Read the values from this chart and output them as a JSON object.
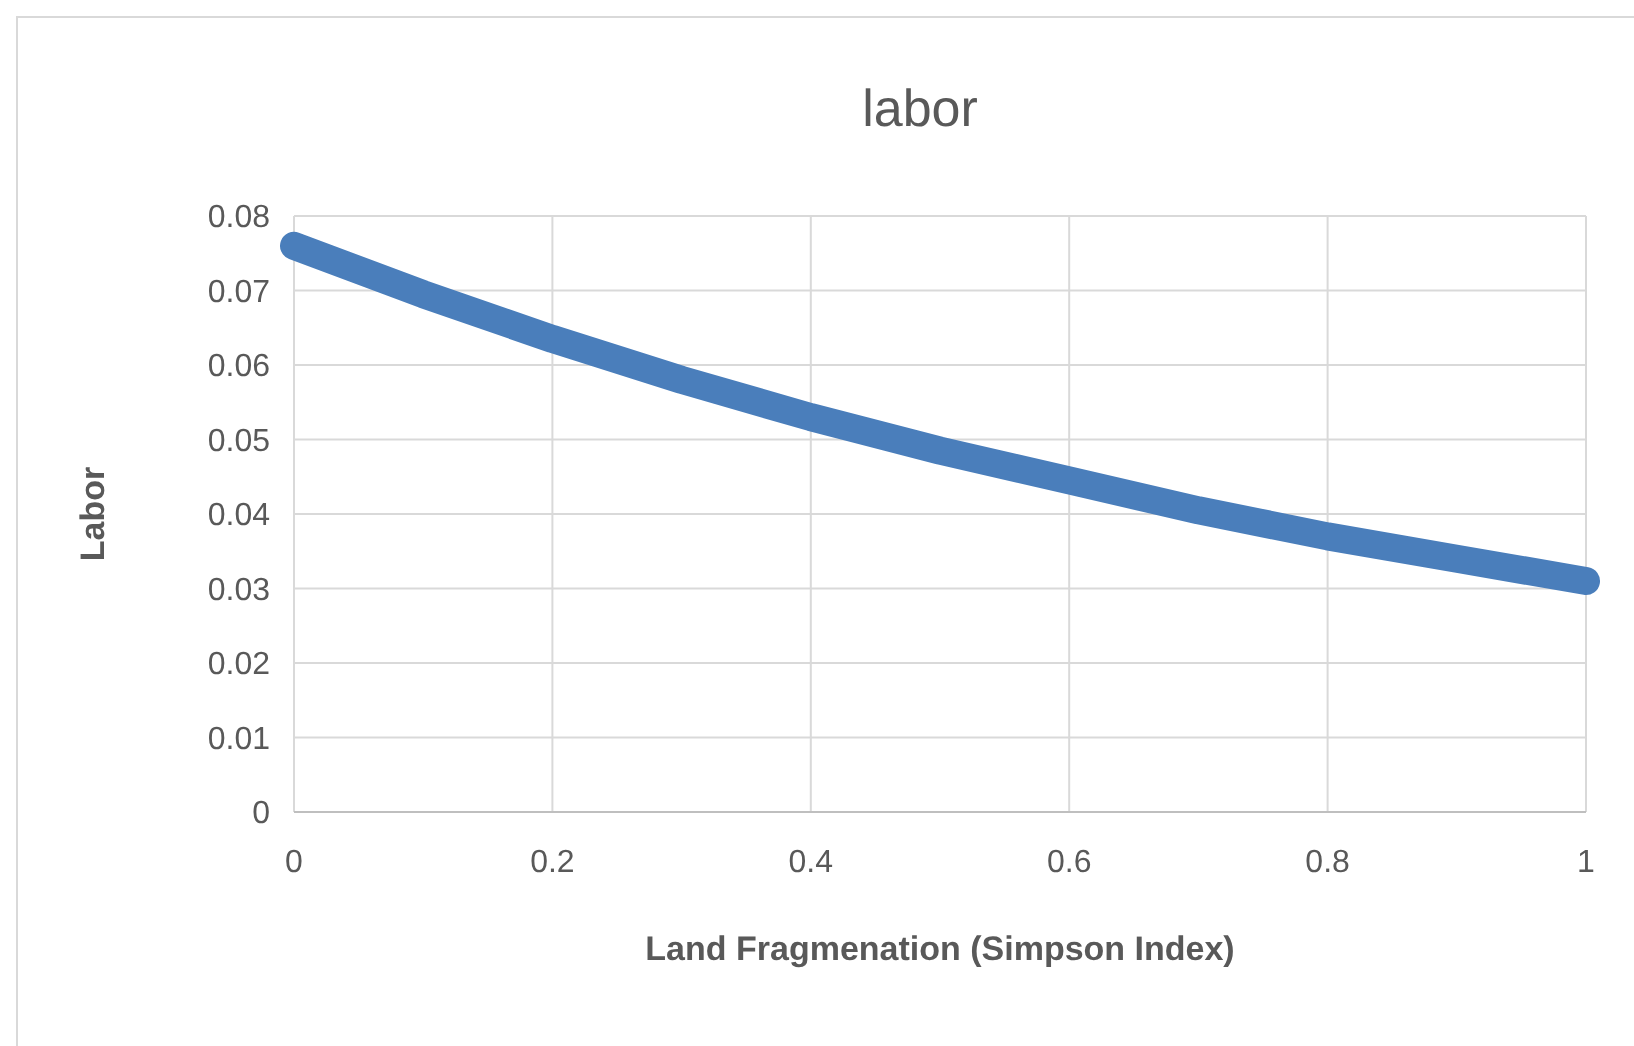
{
  "chart_data": {
    "type": "line",
    "title": "labor",
    "xlabel": "Land Fragmenation (Simpson Index)",
    "ylabel": "Labor",
    "x": [
      0,
      0.1,
      0.2,
      0.3,
      0.4,
      0.5,
      0.6,
      0.7,
      0.8,
      0.9,
      1
    ],
    "series": [
      {
        "color": "#4a7ebb",
        "values": [
          0.076,
          0.0695,
          0.0635,
          0.058,
          0.053,
          0.0485,
          0.0445,
          0.0405,
          0.037,
          0.034,
          0.031
        ]
      }
    ],
    "xlim": [
      0,
      1
    ],
    "xticks": [
      0,
      0.2,
      0.4,
      0.6,
      0.8,
      1
    ],
    "ylim": [
      0,
      0.08
    ],
    "yticks": [
      0,
      0.01,
      0.02,
      0.03,
      0.04,
      0.05,
      0.06,
      0.07,
      0.08
    ],
    "grid": true,
    "marker": "none",
    "line_style": "solid"
  }
}
